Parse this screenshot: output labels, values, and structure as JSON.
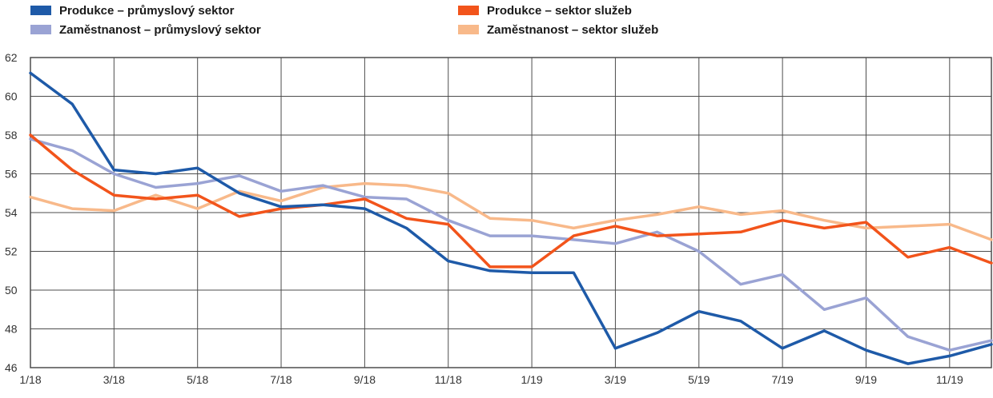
{
  "styles": {
    "background": "#ffffff",
    "grid_color": "#4d4d4d",
    "tick_color": "#333333"
  },
  "chart_data": {
    "type": "line",
    "title": "",
    "xlabel": "",
    "ylabel": "",
    "ylim": [
      46,
      62
    ],
    "yticks": [
      46,
      48,
      50,
      52,
      54,
      56,
      58,
      60,
      62
    ],
    "grid": true,
    "legend_position": "top",
    "x": [
      "1/18",
      "2/18",
      "3/18",
      "4/18",
      "5/18",
      "6/18",
      "7/18",
      "8/18",
      "9/18",
      "10/18",
      "11/18",
      "12/18",
      "1/19",
      "2/19",
      "3/19",
      "4/19",
      "5/19",
      "6/19",
      "7/19",
      "8/19",
      "9/19",
      "10/19",
      "11/19",
      "12/19"
    ],
    "x_tick_indices": [
      0,
      2,
      4,
      6,
      8,
      10,
      12,
      14,
      16,
      18,
      20,
      22
    ],
    "x_tick_labels": [
      "1/18",
      "3/18",
      "5/18",
      "7/18",
      "9/18",
      "11/18",
      "1/19",
      "3/19",
      "5/19",
      "7/19",
      "9/19",
      "11/19"
    ],
    "series": [
      {
        "name": "Produkce – průmyslový sektor",
        "color": "#1e5aa8",
        "values": [
          61.2,
          59.6,
          56.2,
          56.0,
          56.3,
          55.0,
          54.3,
          54.4,
          54.2,
          53.2,
          51.5,
          51.0,
          50.9,
          50.9,
          47.0,
          47.8,
          48.9,
          48.4,
          47.0,
          47.9,
          46.9,
          46.2,
          46.6,
          47.2
        ]
      },
      {
        "name": "Zaměstnanost – průmyslový sektor",
        "color": "#9aa3d4",
        "values": [
          57.8,
          57.2,
          56.0,
          55.3,
          55.5,
          55.9,
          55.1,
          55.4,
          54.8,
          54.7,
          53.6,
          52.8,
          52.8,
          52.6,
          52.4,
          53.0,
          52.0,
          50.3,
          50.8,
          49.0,
          49.6,
          47.6,
          46.9,
          47.4
        ]
      },
      {
        "name": "Produkce – sektor služeb",
        "color": "#f2541b",
        "values": [
          58.0,
          56.2,
          54.9,
          54.7,
          54.9,
          53.8,
          54.2,
          54.4,
          54.7,
          53.7,
          53.4,
          51.2,
          51.2,
          52.8,
          53.3,
          52.8,
          52.9,
          53.0,
          53.6,
          53.2,
          53.5,
          51.7,
          52.2,
          51.4
        ]
      },
      {
        "name": "Zaměstnanost – sektor služeb",
        "color": "#f8b98a",
        "values": [
          54.8,
          54.2,
          54.1,
          54.9,
          54.2,
          55.1,
          54.6,
          55.3,
          55.5,
          55.4,
          55.0,
          53.7,
          53.6,
          53.2,
          53.6,
          53.9,
          54.3,
          53.9,
          54.1,
          53.6,
          53.2,
          53.3,
          53.4,
          52.6
        ]
      }
    ]
  }
}
